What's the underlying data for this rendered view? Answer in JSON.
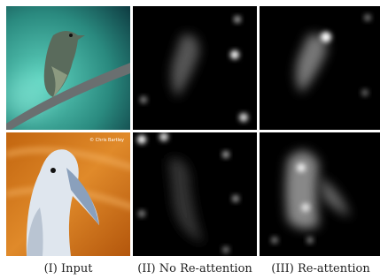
{
  "figure": {
    "watermark": "© Chris Bartley",
    "captions": [
      "(I) Input",
      "(II) No Re-attention",
      "(III) Re-attention"
    ]
  }
}
